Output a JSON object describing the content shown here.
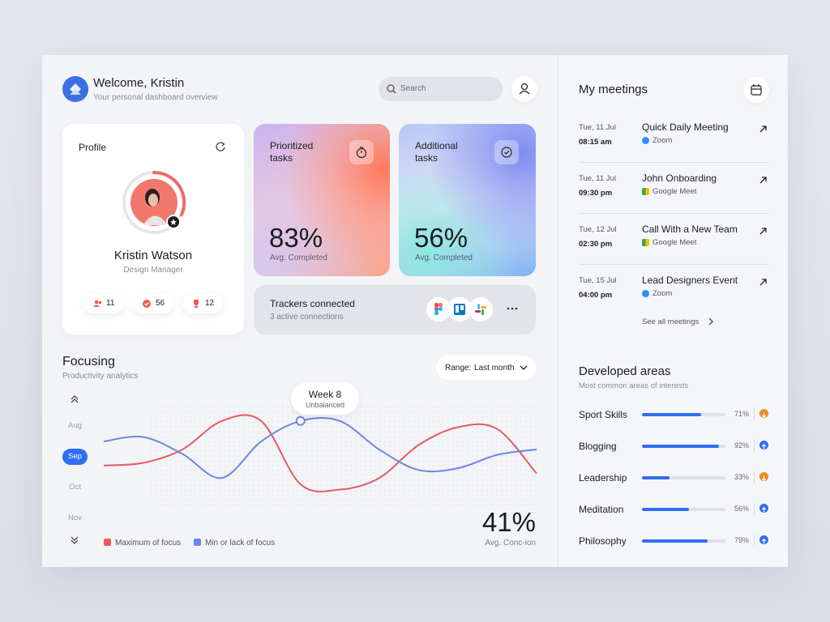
{
  "header": {
    "title": "Welcome, Kristin",
    "subtitle": "Your personal dashboard overview",
    "search": "Search"
  },
  "profile": {
    "title": "Profile",
    "name": "Kristin Watson",
    "role": "Design Manager",
    "stats": [
      "11",
      "56",
      "12"
    ]
  },
  "cards": [
    {
      "title": "Prioritized tasks",
      "value": "83%",
      "caption": "Avg. Completed"
    },
    {
      "title": "Additional tasks",
      "value": "56%",
      "caption": "Avg. Completed"
    }
  ],
  "trackers": {
    "title": "Trackers connected",
    "subtitle": "3 active connections"
  },
  "focusing": {
    "title": "Focusing",
    "subtitle": "Productivity analytics",
    "range_label": "Range:",
    "range_value": "Last month",
    "months": [
      "Aug",
      "Sep",
      "Oct",
      "Nov"
    ],
    "tooltip": {
      "title": "Week 8",
      "subtitle": "Unbalanced"
    },
    "stat": "41%",
    "stat_caption": "Avg. Conc-ion",
    "chart": {
      "type": "line",
      "ylim": [
        0,
        100
      ],
      "series": [
        {
          "name": "Maximum of focus",
          "color": "#e85a5f",
          "values": [
            32,
            35,
            50,
            82,
            82,
            11,
            5,
            18,
            55,
            75,
            73,
            23
          ]
        },
        {
          "name": "Min or lack of focus",
          "color": "#6c86e2",
          "values": [
            59,
            64,
            45,
            18,
            59,
            82,
            82,
            50,
            27,
            29,
            44,
            50
          ]
        }
      ]
    }
  },
  "meetings": {
    "title": "My meetings",
    "items": [
      {
        "date": "Tue, 11 Jul",
        "time": "08:15 am",
        "title": "Quick Daily Meeting",
        "platform": "Zoom"
      },
      {
        "date": "Tue, 11 Jul",
        "time": "09:30 pm",
        "title": "John Onboarding",
        "platform": "Google Meet"
      },
      {
        "date": "Tue, 12 Jul",
        "time": "02:30 pm",
        "title": "Call With a New Team",
        "platform": "Google Meet"
      },
      {
        "date": "Tue, 15 Jul",
        "time": "04:00 pm",
        "title": "Lead Designers Event",
        "platform": "Zoom"
      }
    ],
    "see_all": "See all meetings"
  },
  "areas": {
    "title": "Developed areas",
    "subtitle": "Most common areas of interests",
    "items": [
      {
        "name": "Sport Skills",
        "progress": {
          "value": 71,
          "label": "71%"
        },
        "trend": "down"
      },
      {
        "name": "Blogging",
        "progress": {
          "value": 92,
          "label": "92%"
        },
        "trend": "up"
      },
      {
        "name": "Leadership",
        "progress": {
          "value": 33,
          "label": "33%"
        },
        "trend": "down"
      },
      {
        "name": "Meditation",
        "progress": {
          "value": 56,
          "label": "56%"
        },
        "trend": "up"
      },
      {
        "name": "Philosophy",
        "progress": {
          "value": 79,
          "label": "79%"
        },
        "trend": "up"
      }
    ]
  }
}
